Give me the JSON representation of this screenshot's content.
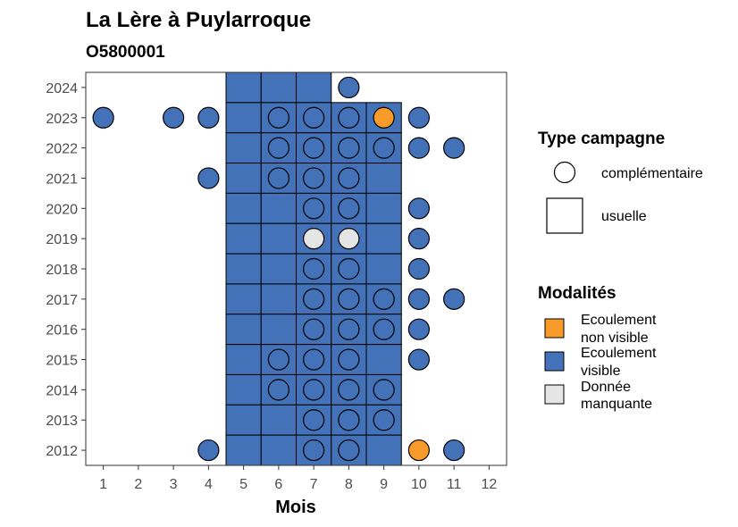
{
  "chart_data": {
    "type": "scatter",
    "title": "La Lère à Puylarroque",
    "subtitle": "O5800001",
    "xlabel": "Mois",
    "ylabel": "",
    "x_ticks": [
      1,
      2,
      3,
      4,
      5,
      6,
      7,
      8,
      9,
      10,
      11,
      12
    ],
    "y_ticks": [
      2012,
      2013,
      2014,
      2015,
      2016,
      2017,
      2018,
      2019,
      2020,
      2021,
      2022,
      2023,
      2024
    ],
    "xlim": [
      0.5,
      12.5
    ],
    "ylim": [
      2011.5,
      2024.5
    ],
    "grid": false,
    "colors": {
      "ecoulement_non_visible": "#f89b2b",
      "ecoulement_visible": "#4472b8",
      "donnee_manquante": "#e5e5e5"
    },
    "legend_type": {
      "title": "Type campagne",
      "items": [
        {
          "label": "complémentaire",
          "shape": "circle"
        },
        {
          "label": "usuelle",
          "shape": "square"
        }
      ]
    },
    "legend_modalites": {
      "title": "Modalités",
      "items": [
        {
          "key": "ecoulement_non_visible",
          "line1": "Ecoulement",
          "line2": "non visible"
        },
        {
          "key": "ecoulement_visible",
          "line1": "Ecoulement",
          "line2": "visible"
        },
        {
          "key": "donnee_manquante",
          "line1": "Donnée",
          "line2": "manquante"
        }
      ]
    },
    "usuelle": [
      {
        "year": 2024,
        "months": [
          5,
          6,
          7
        ],
        "modalite": "ecoulement_visible"
      },
      {
        "year": 2023,
        "months": [
          5,
          6,
          7,
          8,
          9
        ],
        "modalite": "ecoulement_visible"
      },
      {
        "year": 2022,
        "months": [
          5,
          6,
          7,
          8,
          9
        ],
        "modalite": "ecoulement_visible"
      },
      {
        "year": 2021,
        "months": [
          5,
          6,
          7,
          8,
          9
        ],
        "modalite": "ecoulement_visible"
      },
      {
        "year": 2020,
        "months": [
          5,
          6,
          7,
          8,
          9
        ],
        "modalite": "ecoulement_visible"
      },
      {
        "year": 2019,
        "months": [
          5,
          6,
          7,
          8,
          9
        ],
        "modalite": "ecoulement_visible"
      },
      {
        "year": 2018,
        "months": [
          5,
          6,
          7,
          8,
          9
        ],
        "modalite": "ecoulement_visible"
      },
      {
        "year": 2017,
        "months": [
          5,
          6,
          7,
          8,
          9
        ],
        "modalite": "ecoulement_visible"
      },
      {
        "year": 2016,
        "months": [
          5,
          6,
          7,
          8,
          9
        ],
        "modalite": "ecoulement_visible"
      },
      {
        "year": 2015,
        "months": [
          5,
          6,
          7,
          8,
          9
        ],
        "modalite": "ecoulement_visible"
      },
      {
        "year": 2014,
        "months": [
          5,
          6,
          7,
          8,
          9
        ],
        "modalite": "ecoulement_visible"
      },
      {
        "year": 2013,
        "months": [
          5,
          6,
          7,
          8,
          9
        ],
        "modalite": "ecoulement_visible"
      },
      {
        "year": 2012,
        "months": [
          5,
          6,
          7,
          8,
          9
        ],
        "modalite": "ecoulement_visible"
      }
    ],
    "complementaire": [
      {
        "year": 2024,
        "month": 8,
        "modalite": "ecoulement_visible"
      },
      {
        "year": 2023,
        "month": 1,
        "modalite": "ecoulement_visible"
      },
      {
        "year": 2023,
        "month": 3,
        "modalite": "ecoulement_visible"
      },
      {
        "year": 2023,
        "month": 4,
        "modalite": "ecoulement_visible"
      },
      {
        "year": 2023,
        "month": 6,
        "modalite": "ecoulement_visible"
      },
      {
        "year": 2023,
        "month": 7,
        "modalite": "ecoulement_visible"
      },
      {
        "year": 2023,
        "month": 8,
        "modalite": "ecoulement_visible"
      },
      {
        "year": 2023,
        "month": 9,
        "modalite": "ecoulement_non_visible"
      },
      {
        "year": 2023,
        "month": 10,
        "modalite": "ecoulement_visible"
      },
      {
        "year": 2022,
        "month": 6,
        "modalite": "ecoulement_visible"
      },
      {
        "year": 2022,
        "month": 7,
        "modalite": "ecoulement_visible"
      },
      {
        "year": 2022,
        "month": 8,
        "modalite": "ecoulement_visible"
      },
      {
        "year": 2022,
        "month": 9,
        "modalite": "ecoulement_visible"
      },
      {
        "year": 2022,
        "month": 10,
        "modalite": "ecoulement_visible"
      },
      {
        "year": 2022,
        "month": 11,
        "modalite": "ecoulement_visible"
      },
      {
        "year": 2021,
        "month": 4,
        "modalite": "ecoulement_visible"
      },
      {
        "year": 2021,
        "month": 6,
        "modalite": "ecoulement_visible"
      },
      {
        "year": 2021,
        "month": 7,
        "modalite": "ecoulement_visible"
      },
      {
        "year": 2021,
        "month": 8,
        "modalite": "ecoulement_visible"
      },
      {
        "year": 2020,
        "month": 7,
        "modalite": "ecoulement_visible"
      },
      {
        "year": 2020,
        "month": 8,
        "modalite": "ecoulement_visible"
      },
      {
        "year": 2020,
        "month": 10,
        "modalite": "ecoulement_visible"
      },
      {
        "year": 2019,
        "month": 7,
        "modalite": "donnee_manquante"
      },
      {
        "year": 2019,
        "month": 8,
        "modalite": "donnee_manquante"
      },
      {
        "year": 2019,
        "month": 10,
        "modalite": "ecoulement_visible"
      },
      {
        "year": 2018,
        "month": 7,
        "modalite": "ecoulement_visible"
      },
      {
        "year": 2018,
        "month": 8,
        "modalite": "ecoulement_visible"
      },
      {
        "year": 2018,
        "month": 10,
        "modalite": "ecoulement_visible"
      },
      {
        "year": 2017,
        "month": 7,
        "modalite": "ecoulement_visible"
      },
      {
        "year": 2017,
        "month": 8,
        "modalite": "ecoulement_visible"
      },
      {
        "year": 2017,
        "month": 9,
        "modalite": "ecoulement_visible"
      },
      {
        "year": 2017,
        "month": 10,
        "modalite": "ecoulement_visible"
      },
      {
        "year": 2017,
        "month": 11,
        "modalite": "ecoulement_visible"
      },
      {
        "year": 2016,
        "month": 7,
        "modalite": "ecoulement_visible"
      },
      {
        "year": 2016,
        "month": 8,
        "modalite": "ecoulement_visible"
      },
      {
        "year": 2016,
        "month": 9,
        "modalite": "ecoulement_visible"
      },
      {
        "year": 2016,
        "month": 10,
        "modalite": "ecoulement_visible"
      },
      {
        "year": 2015,
        "month": 6,
        "modalite": "ecoulement_visible"
      },
      {
        "year": 2015,
        "month": 7,
        "modalite": "ecoulement_visible"
      },
      {
        "year": 2015,
        "month": 8,
        "modalite": "ecoulement_visible"
      },
      {
        "year": 2015,
        "month": 10,
        "modalite": "ecoulement_visible"
      },
      {
        "year": 2014,
        "month": 6,
        "modalite": "ecoulement_visible"
      },
      {
        "year": 2014,
        "month": 7,
        "modalite": "ecoulement_visible"
      },
      {
        "year": 2014,
        "month": 8,
        "modalite": "ecoulement_visible"
      },
      {
        "year": 2014,
        "month": 9,
        "modalite": "ecoulement_visible"
      },
      {
        "year": 2013,
        "month": 7,
        "modalite": "ecoulement_visible"
      },
      {
        "year": 2013,
        "month": 8,
        "modalite": "ecoulement_visible"
      },
      {
        "year": 2013,
        "month": 9,
        "modalite": "ecoulement_visible"
      },
      {
        "year": 2012,
        "month": 4,
        "modalite": "ecoulement_visible"
      },
      {
        "year": 2012,
        "month": 7,
        "modalite": "ecoulement_visible"
      },
      {
        "year": 2012,
        "month": 8,
        "modalite": "ecoulement_visible"
      },
      {
        "year": 2012,
        "month": 10,
        "modalite": "ecoulement_non_visible"
      },
      {
        "year": 2012,
        "month": 11,
        "modalite": "ecoulement_visible"
      }
    ]
  }
}
